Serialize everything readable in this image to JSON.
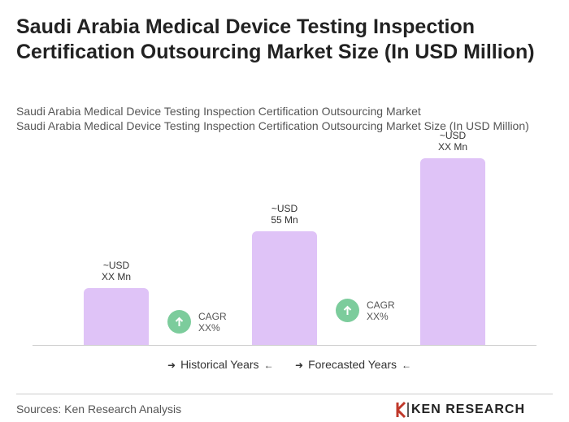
{
  "chart_data": {
    "type": "bar",
    "title": "Saudi Arabia Medical Device Testing Inspection Certification Outsourcing Market Size (In USD Million)",
    "subtitle": [
      "Saudi Arabia Medical Device Testing Inspection Certification Outsourcing Market",
      "Saudi Arabia Medical Device Testing Inspection Certification Outsourcing Market Size (In USD Million)"
    ],
    "categories": [
      null,
      null,
      null
    ],
    "values": [
      27.5,
      55,
      90.4
    ],
    "value_labels": [
      "~USD\nXX Mn",
      "~USD\n55 Mn",
      "~USD\nXX Mn"
    ],
    "color": "#dfc3f7",
    "ylim": [
      0,
      100
    ],
    "annotations": [
      "CAGR\nXX%",
      "CAGR\nXX%"
    ],
    "annotation_color": "#7ccc9c",
    "legend": [
      "Historical Years",
      "Forecasted Years"
    ],
    "source": "Sources: Ken Research Analysis",
    "logo": "KEN RESEARCH"
  }
}
